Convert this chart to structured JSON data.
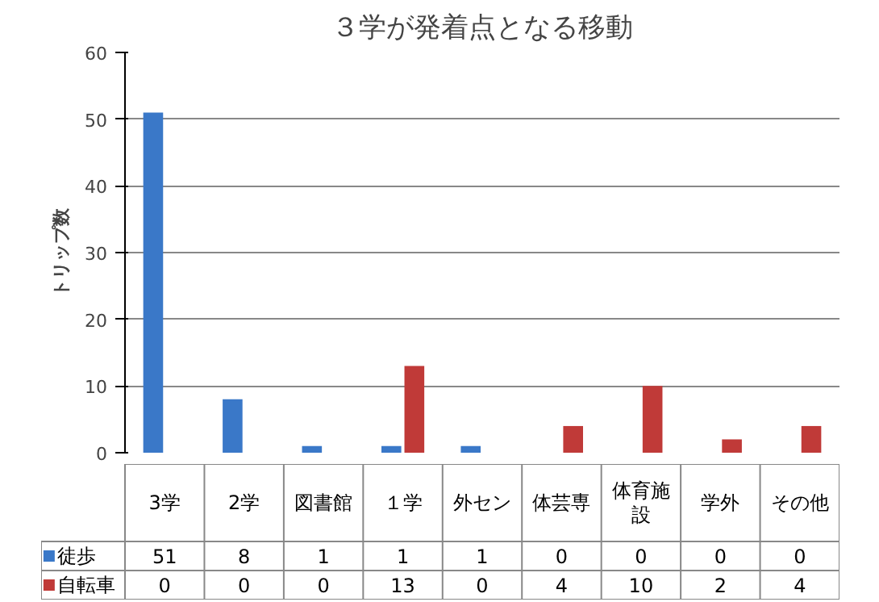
{
  "chart_data": {
    "type": "bar",
    "title": "３学が発着点となる移動",
    "ylabel": "トリップ数",
    "categories": [
      "3学",
      "2学",
      "図書館",
      "１学",
      "外セン",
      "体芸専",
      "体育施設",
      "学外",
      "その他"
    ],
    "series": [
      {
        "name": "徒歩",
        "color": "#3a78c8",
        "values": [
          51,
          8,
          1,
          1,
          1,
          0,
          0,
          0,
          0
        ]
      },
      {
        "name": "自転車",
        "color": "#c03a38",
        "values": [
          0,
          0,
          0,
          13,
          0,
          4,
          10,
          2,
          4
        ]
      }
    ],
    "ylim": [
      0,
      60
    ],
    "yticks": [
      0,
      10,
      20,
      30,
      40,
      50,
      60
    ],
    "grid": "y",
    "data_labels": true,
    "legend": "bottom left"
  }
}
